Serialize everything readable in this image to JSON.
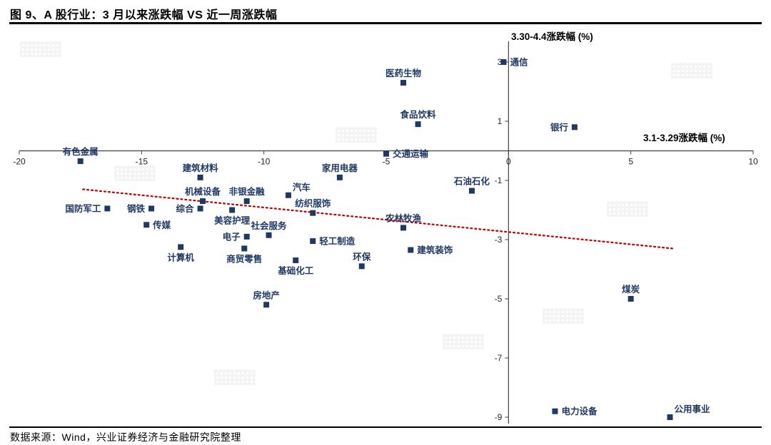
{
  "header": {
    "title": "图 9、A 股行业：3 月以来涨跌幅 VS 近一周涨跌幅"
  },
  "footer": {
    "source": "数据来源：Wind，兴业证券经济与金融研究院整理"
  },
  "chart_data": {
    "type": "scatter",
    "title": "A 股行业：3 月以来涨跌幅 VS 近一周涨跌幅",
    "xlabel": "3.1-3.29涨跌幅 (%)",
    "ylabel": "3.30-4.4涨跌幅 (%)",
    "xlim": [
      -20,
      10
    ],
    "ylim": [
      -9,
      3
    ],
    "x_ticks": [
      -20,
      -15,
      -10,
      -5,
      0,
      5,
      10
    ],
    "y_ticks": [
      3,
      1,
      -1,
      -3,
      -5,
      -7,
      -9
    ],
    "grid": false,
    "legend": "none",
    "marker_color": "#1f3864",
    "axis_color": "#404040",
    "trendline": {
      "color": "#c00000",
      "style": "dotted",
      "x1": -17.4,
      "y1": -1.3,
      "x2": 6.7,
      "y2": -3.3
    },
    "points": [
      {
        "name": "通信",
        "x": -0.2,
        "y": 3.0,
        "label_pos": "right"
      },
      {
        "name": "医药生物",
        "x": -4.3,
        "y": 2.3,
        "label_pos": "above"
      },
      {
        "name": "食品饮料",
        "x": -3.7,
        "y": 0.9,
        "label_pos": "above"
      },
      {
        "name": "银行",
        "x": 2.7,
        "y": 0.8,
        "label_pos": "left"
      },
      {
        "name": "有色金属",
        "x": -17.5,
        "y": -0.35,
        "label_pos": "above"
      },
      {
        "name": "交通运输",
        "x": -5.0,
        "y": -0.1,
        "label_pos": "right"
      },
      {
        "name": "建筑材料",
        "x": -12.6,
        "y": -0.9,
        "label_pos": "above"
      },
      {
        "name": "家用电器",
        "x": -6.9,
        "y": -0.9,
        "label_pos": "above"
      },
      {
        "name": "石油石化",
        "x": -1.5,
        "y": -1.35,
        "label_pos": "above"
      },
      {
        "name": "机械设备",
        "x": -12.5,
        "y": -1.7,
        "label_pos": "above"
      },
      {
        "name": "非银金融",
        "x": -10.7,
        "y": -1.7,
        "label_pos": "above"
      },
      {
        "name": "汽车",
        "x": -9.0,
        "y": -1.5,
        "label_pos": "above-right"
      },
      {
        "name": "国防军工",
        "x": -16.4,
        "y": -1.95,
        "label_pos": "left"
      },
      {
        "name": "钢铁",
        "x": -14.6,
        "y": -1.95,
        "label_pos": "left"
      },
      {
        "name": "综合",
        "x": -12.6,
        "y": -1.95,
        "label_pos": "left"
      },
      {
        "name": "美容护理",
        "x": -11.3,
        "y": -2.0,
        "label_pos": "below"
      },
      {
        "name": "纺织服饰",
        "x": -8.0,
        "y": -2.1,
        "label_pos": "above"
      },
      {
        "name": "农林牧渔",
        "x": -4.3,
        "y": -2.6,
        "label_pos": "above"
      },
      {
        "name": "传媒",
        "x": -14.8,
        "y": -2.5,
        "label_pos": "right"
      },
      {
        "name": "电子",
        "x": -10.7,
        "y": -2.9,
        "label_pos": "left"
      },
      {
        "name": "社会服务",
        "x": -9.8,
        "y": -2.85,
        "label_pos": "above"
      },
      {
        "name": "轻工制造",
        "x": -8.0,
        "y": -3.05,
        "label_pos": "right"
      },
      {
        "name": "建筑装饰",
        "x": -4.0,
        "y": -3.35,
        "label_pos": "right"
      },
      {
        "name": "计算机",
        "x": -13.4,
        "y": -3.25,
        "label_pos": "below"
      },
      {
        "name": "商贸零售",
        "x": -10.8,
        "y": -3.3,
        "label_pos": "below"
      },
      {
        "name": "基础化工",
        "x": -8.7,
        "y": -3.7,
        "label_pos": "below"
      },
      {
        "name": "环保",
        "x": -6.0,
        "y": -3.9,
        "label_pos": "above"
      },
      {
        "name": "煤炭",
        "x": 5.0,
        "y": -5.0,
        "label_pos": "above"
      },
      {
        "name": "房地产",
        "x": -9.9,
        "y": -5.2,
        "label_pos": "above"
      },
      {
        "name": "电力设备",
        "x": 1.9,
        "y": -8.8,
        "label_pos": "right"
      },
      {
        "name": "公用事业",
        "x": 6.6,
        "y": -9.0,
        "label_pos": "above-right"
      }
    ]
  }
}
